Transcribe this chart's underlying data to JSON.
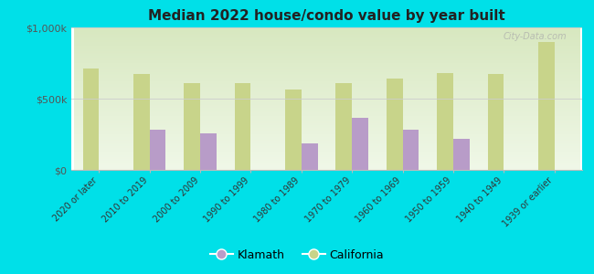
{
  "title": "Median 2022 house/condo value by year built",
  "categories": [
    "2020 or later",
    "2010 to 2019",
    "2000 to 2009",
    "1990 to 1999",
    "1980 to 1989",
    "1970 to 1979",
    "1960 to 1969",
    "1950 to 1959",
    "1940 to 1949",
    "1939 or earlier"
  ],
  "klamath": [
    null,
    280000,
    255000,
    null,
    185000,
    365000,
    285000,
    215000,
    null,
    null
  ],
  "california": [
    710000,
    675000,
    610000,
    610000,
    565000,
    610000,
    640000,
    680000,
    670000,
    900000
  ],
  "klamath_color": "#b89cc8",
  "california_color": "#c8d48a",
  "background_color": "#00e0e8",
  "plot_bg_top": "#d8e8c0",
  "plot_bg_bottom": "#f0f8e8",
  "bar_width": 0.32,
  "ylim": [
    0,
    1000000
  ],
  "yticks": [
    0,
    500000,
    1000000
  ],
  "ytick_labels": [
    "$0",
    "$500k",
    "$1,000k"
  ],
  "legend_klamath": "Klamath",
  "legend_california": "California",
  "watermark": "City-Data.com"
}
